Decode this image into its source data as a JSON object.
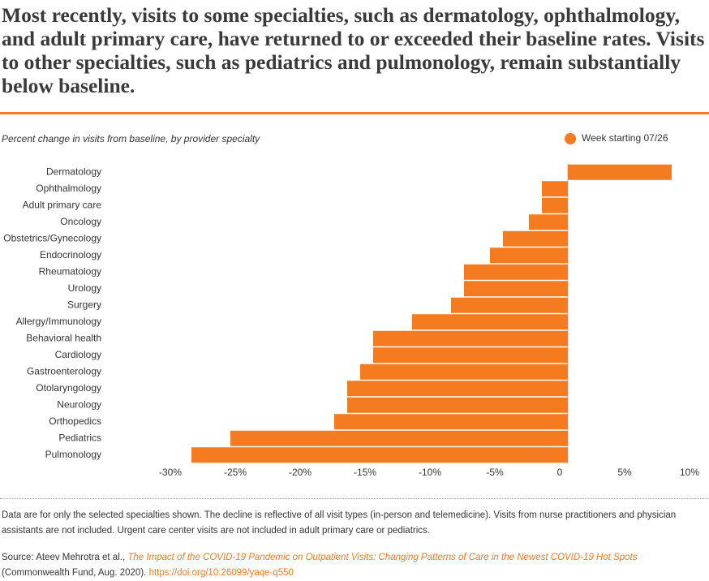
{
  "chart_data": {
    "type": "bar",
    "orientation": "horizontal",
    "title": "Most recently, visits to some specialties, such as dermatology, ophthalmology, and adult primary care, have returned to or exceeded their baseline rates. Visits to other specialties, such as pediatrics and pulmonology, remain substantially below baseline.",
    "subtitle": "Percent change in visits from baseline, by provider specialty",
    "categories": [
      "Dermatology",
      "Ophthalmology",
      "Adult primary care",
      "Oncology",
      "Obstetrics/Gynecology",
      "Endocrinology",
      "Rheumatology",
      "Urology",
      "Surgery",
      "Allergy/Immunology",
      "Behavioral health",
      "Cardiology",
      "Gastroenterology",
      "Otolaryngology",
      "Neurology",
      "Orthopedics",
      "Pediatrics",
      "Pulmonology"
    ],
    "series": [
      {
        "name": "Week starting 07/26",
        "color": "#f47b20",
        "values": [
          8,
          -2,
          -2,
          -3,
          -5,
          -6,
          -8,
          -8,
          -9,
          -12,
          -15,
          -15,
          -16,
          -17,
          -17,
          -18,
          -26,
          -29
        ]
      }
    ],
    "xlim": [
      -30,
      10
    ],
    "xticks": [
      {
        "value": -30,
        "label": "-30%"
      },
      {
        "value": -25,
        "label": "-25%"
      },
      {
        "value": -20,
        "label": "-20%"
      },
      {
        "value": -15,
        "label": "-15%"
      },
      {
        "value": -10,
        "label": "-10%"
      },
      {
        "value": -5,
        "label": "-5%"
      },
      0,
      {
        "value": 5,
        "label": "5%"
      },
      {
        "value": 10,
        "label": "10%"
      }
    ],
    "legend": "top-right"
  },
  "notes": "Data are for only the selected specialties shown. The decline is reflective of all visit types (in-person and telemedicine). Visits from nurse practitioners and physician assistants are not included. Urgent care center visits are not included in adult primary care or pediatrics.",
  "source": {
    "prefix": "Source: Ateev Mehrotra et al.,",
    "link_title": "The Impact of the COVID-19 Pandemic on Outpatient Visits: Changing Patterns of Care in the Newest COVID-19 Hot Spots",
    "publisher": "(Commonwealth Fund, Aug. 2020).",
    "doi": "https://doi.org/10.26099/yaqe-q550"
  }
}
